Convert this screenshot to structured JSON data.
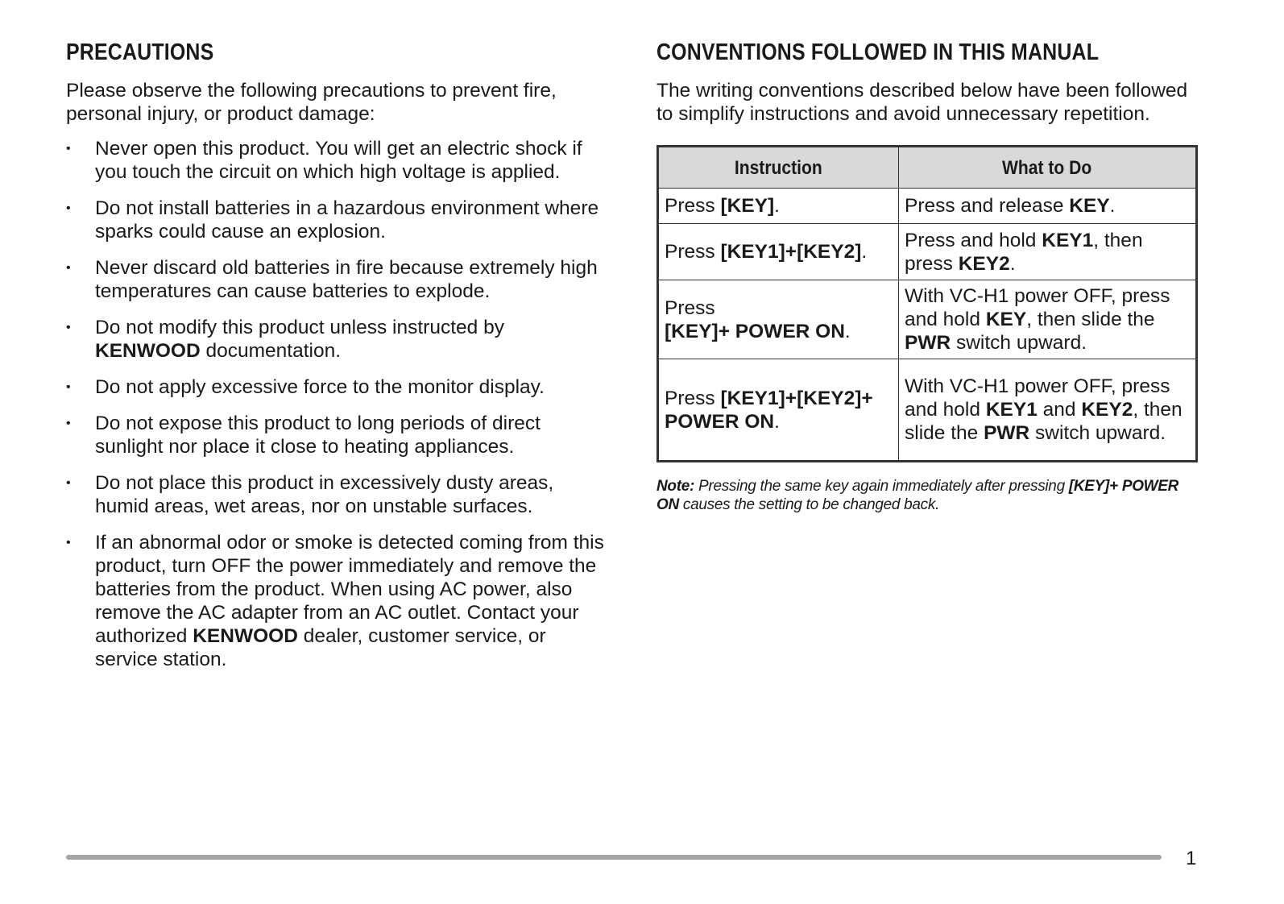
{
  "precautions": {
    "heading": "PRECAUTIONS",
    "intro": "Please observe the following precautions to prevent fire, personal injury, or product damage:",
    "bullet_symbol": "•",
    "items": [
      [
        {
          "t": "Never open this product.  You will get an electric shock if you touch the circuit on which high voltage is applied."
        }
      ],
      [
        {
          "t": "Do not install batteries in a hazardous environment where sparks could cause an explosion."
        }
      ],
      [
        {
          "t": "Never discard old batteries in fire because extremely high temperatures can cause batteries to explode."
        }
      ],
      [
        {
          "t": "Do not modify this product unless instructed by "
        },
        {
          "t": "KENWOOD",
          "b": true
        },
        {
          "t": " documentation."
        }
      ],
      [
        {
          "t": "Do not apply excessive force to the monitor display."
        }
      ],
      [
        {
          "t": "Do not expose this product to long periods of direct sunlight nor place it close to heating appliances."
        }
      ],
      [
        {
          "t": "Do not place this product in excessively dusty areas, humid areas, wet areas, nor on unstable surfaces."
        }
      ],
      [
        {
          "t": "If an abnormal odor or smoke is detected coming from this product, turn OFF the power immediately and remove the batteries from the product.  When using AC power, also remove the AC adapter from an AC outlet.  Contact your authorized "
        },
        {
          "t": "KENWOOD",
          "b": true
        },
        {
          "t": " dealer, customer service, or service station."
        }
      ]
    ]
  },
  "conventions": {
    "heading": "CONVENTIONS FOLLOWED IN THIS MANUAL",
    "intro": "The writing conventions described below have been followed to simplify instructions and avoid unnecessary repetition.",
    "table": {
      "headers": [
        "Instruction",
        "What to Do"
      ],
      "rows": [
        [
          [
            {
              "t": "Press "
            },
            {
              "t": "[KEY]",
              "b": true
            },
            {
              "t": "."
            }
          ],
          [
            {
              "t": "Press and release "
            },
            {
              "t": "KEY",
              "b": true
            },
            {
              "t": "."
            }
          ]
        ],
        [
          [
            {
              "t": "Press "
            },
            {
              "t": "[KEY1]+[KEY2]",
              "b": true
            },
            {
              "t": "."
            }
          ],
          [
            {
              "t": "Press and hold "
            },
            {
              "t": "KEY1",
              "b": true
            },
            {
              "t": ", then press "
            },
            {
              "t": "KEY2",
              "b": true
            },
            {
              "t": "."
            }
          ]
        ],
        [
          [
            {
              "t": "Press"
            },
            {
              "br": true
            },
            {
              "t": "[KEY]+ POWER ON",
              "b": true
            },
            {
              "t": "."
            }
          ],
          [
            {
              "t": "With VC-H1 power OFF, press and hold "
            },
            {
              "t": "KEY",
              "b": true
            },
            {
              "t": ", then slide the "
            },
            {
              "t": "PWR",
              "b": true
            },
            {
              "t": " switch upward."
            }
          ]
        ],
        [
          [
            {
              "t": "Press "
            },
            {
              "t": "[KEY1]+[KEY2]+ POWER ON",
              "b": true
            },
            {
              "t": "."
            }
          ],
          [
            {
              "t": "With VC-H1 power OFF, press and hold "
            },
            {
              "t": "KEY1",
              "b": true
            },
            {
              "t": " and "
            },
            {
              "t": "KEY2",
              "b": true
            },
            {
              "t": ", then slide the "
            },
            {
              "t": "PWR",
              "b": true
            },
            {
              "t": " switch upward."
            }
          ]
        ]
      ]
    },
    "note": [
      {
        "t": "Note:",
        "b": true
      },
      {
        "t": "  Pressing the same key again immediately after pressing "
      },
      {
        "t": "[KEY]+ POWER ON",
        "b": true
      },
      {
        "t": " causes the setting to be changed back."
      }
    ]
  },
  "footer": {
    "page_number": "1",
    "rule_color": "#a6a6a8"
  }
}
